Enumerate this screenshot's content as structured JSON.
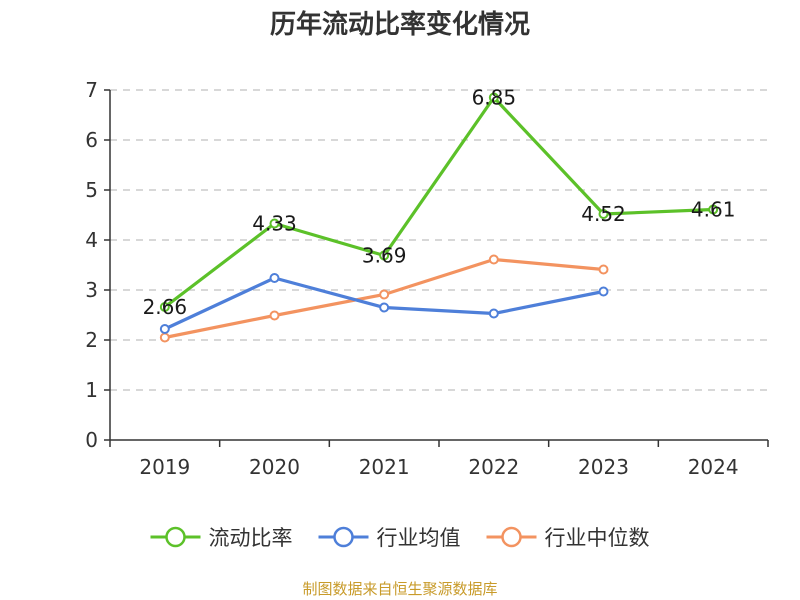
{
  "chart_data": {
    "type": "line",
    "title": "历年流动比率变化情况",
    "categories": [
      "2019",
      "2020",
      "2021",
      "2022",
      "2023",
      "2024"
    ],
    "ylim": [
      0,
      7
    ],
    "yticks": [
      0,
      1,
      2,
      3,
      4,
      5,
      6,
      7
    ],
    "grid": true,
    "legend_position": "bottom",
    "series": [
      {
        "name": "流动比率",
        "color": "#5cc129",
        "values": [
          2.66,
          4.33,
          3.69,
          6.85,
          4.52,
          4.61
        ],
        "labels": [
          "2.66",
          "4.33",
          "3.69",
          "6.85",
          "4.52",
          "4.61"
        ]
      },
      {
        "name": "行业均值",
        "color": "#4e7fd9",
        "values": [
          2.22,
          3.24,
          2.65,
          2.53,
          2.97,
          null
        ]
      },
      {
        "name": "行业中位数",
        "color": "#f39360",
        "values": [
          2.05,
          2.49,
          2.91,
          3.61,
          3.41,
          null
        ]
      }
    ]
  },
  "source_note": "制图数据来自恒生聚源数据库"
}
